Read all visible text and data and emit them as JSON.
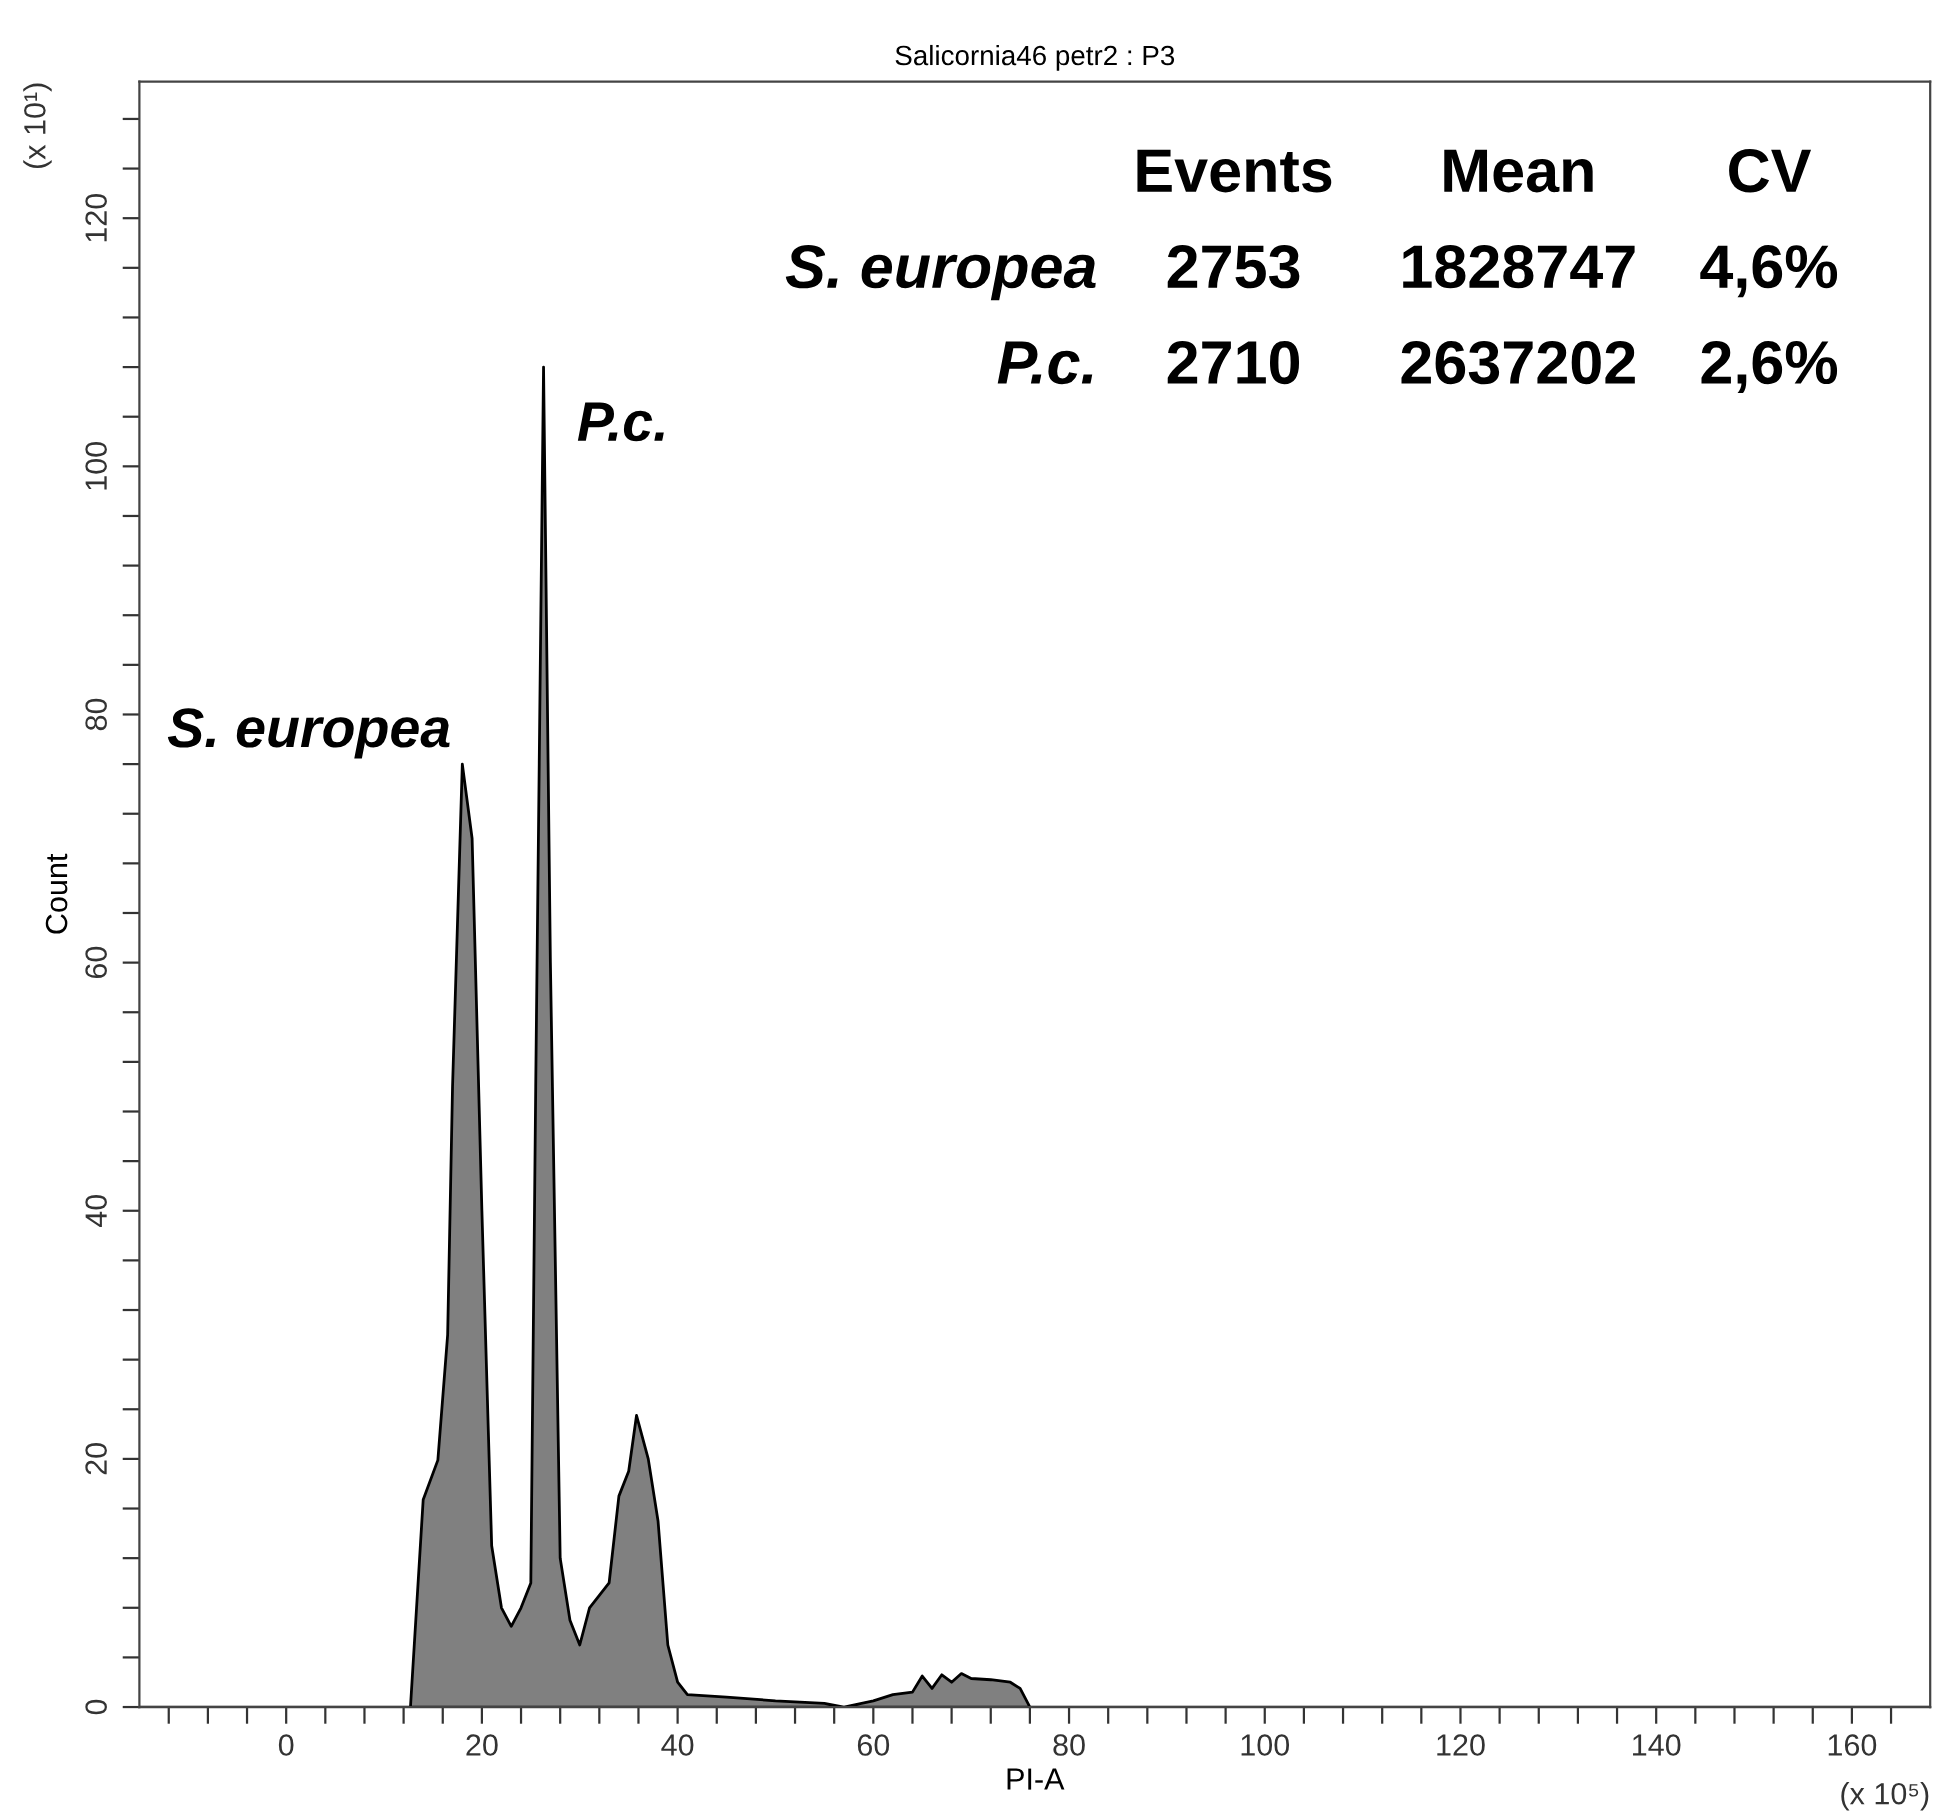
{
  "chart_data": {
    "type": "area",
    "title": "Salicornia46 petr2 : P3",
    "xlabel": "PI-A",
    "ylabel": "Count",
    "x": [
      -15,
      12.7,
      14,
      15.5,
      16.5,
      17,
      18,
      19,
      20,
      21,
      22,
      23,
      24,
      25,
      25.5,
      26.3,
      27,
      28,
      29,
      30,
      31,
      32,
      33,
      34,
      35,
      35.8,
      37,
      38,
      39,
      40,
      41,
      45,
      50,
      55,
      57,
      60,
      62,
      64,
      65,
      66,
      67,
      68,
      69,
      70,
      72,
      74,
      75,
      76,
      80,
      168
    ],
    "series": [
      {
        "color": "#808080",
        "values": [
          0,
          0,
          16.7,
          19.9,
          30,
          50,
          76,
          70,
          40,
          13,
          8,
          6.5,
          8,
          10,
          50,
          108,
          60,
          12,
          7,
          5,
          8,
          9,
          10,
          17,
          19,
          23.5,
          20,
          15,
          5,
          2,
          1,
          0.8,
          0.5,
          0.3,
          0,
          0.5,
          1,
          1.2,
          2.5,
          1.5,
          2.6,
          2,
          2.7,
          2.3,
          2.2,
          2,
          1.5,
          0,
          0,
          0
        ]
      }
    ],
    "xlim": [
      -15,
      168
    ],
    "ylim": [
      0,
      131
    ],
    "xticks": [
      {
        "value": -12,
        "label": null
      },
      {
        "value": -8,
        "label": null
      },
      {
        "value": -4,
        "label": null
      },
      0,
      {
        "value": 4,
        "label": null
      },
      {
        "value": 8,
        "label": null
      },
      {
        "value": 12,
        "label": null
      },
      {
        "value": 16,
        "label": null
      },
      20,
      {
        "value": 24,
        "label": null
      },
      {
        "value": 28,
        "label": null
      },
      {
        "value": 32,
        "label": null
      },
      {
        "value": 36,
        "label": null
      },
      40,
      {
        "value": 44,
        "label": null
      },
      {
        "value": 48,
        "label": null
      },
      {
        "value": 52,
        "label": null
      },
      {
        "value": 56,
        "label": null
      },
      60,
      {
        "value": 64,
        "label": null
      },
      {
        "value": 68,
        "label": null
      },
      {
        "value": 72,
        "label": null
      },
      {
        "value": 76,
        "label": null
      },
      80,
      {
        "value": 84,
        "label": null
      },
      {
        "value": 88,
        "label": null
      },
      {
        "value": 92,
        "label": null
      },
      {
        "value": 96,
        "label": null
      },
      100,
      {
        "value": 104,
        "label": null
      },
      {
        "value": 108,
        "label": null
      },
      {
        "value": 112,
        "label": null
      },
      {
        "value": 116,
        "label": null
      },
      120,
      {
        "value": 124,
        "label": null
      },
      {
        "value": 128,
        "label": null
      },
      {
        "value": 132,
        "label": null
      },
      {
        "value": 136,
        "label": null
      },
      140,
      {
        "value": 144,
        "label": null
      },
      {
        "value": 148,
        "label": null
      },
      {
        "value": 152,
        "label": null
      },
      {
        "value": 156,
        "label": null
      },
      160,
      {
        "value": 164,
        "label": null
      }
    ],
    "yticks": [
      0,
      {
        "value": 4,
        "label": null
      },
      {
        "value": 8,
        "label": null
      },
      {
        "value": 12,
        "label": null
      },
      {
        "value": 16,
        "label": null
      },
      20,
      {
        "value": 24,
        "label": null
      },
      {
        "value": 28,
        "label": null
      },
      {
        "value": 32,
        "label": null
      },
      {
        "value": 36,
        "label": null
      },
      40,
      {
        "value": 44,
        "label": null
      },
      {
        "value": 48,
        "label": null
      },
      {
        "value": 52,
        "label": null
      },
      {
        "value": 56,
        "label": null
      },
      60,
      {
        "value": 64,
        "label": null
      },
      {
        "value": 68,
        "label": null
      },
      {
        "value": 72,
        "label": null
      },
      {
        "value": 76,
        "label": null
      },
      80,
      {
        "value": 84,
        "label": null
      },
      {
        "value": 88,
        "label": null
      },
      {
        "value": 92,
        "label": null
      },
      {
        "value": 96,
        "label": null
      },
      100,
      {
        "value": 104,
        "label": null
      },
      {
        "value": 108,
        "label": null
      },
      {
        "value": 112,
        "label": null
      },
      {
        "value": 116,
        "label": null
      },
      120,
      {
        "value": 124,
        "label": null
      },
      {
        "value": 128,
        "label": null
      }
    ],
    "grid": false,
    "annotations": [
      {
        "text": "S. europea",
        "x": 18,
        "y": 76
      },
      {
        "text": "P.c.",
        "x": 26.3,
        "y": 108
      },
      "Events",
      "Mean",
      "CV",
      "S. europea",
      "2753",
      "1828747",
      "4,6%",
      "P.c.",
      "2710",
      "2637202",
      "2,6%",
      "(x 10¹)",
      "(x 10⁵)"
    ]
  }
}
